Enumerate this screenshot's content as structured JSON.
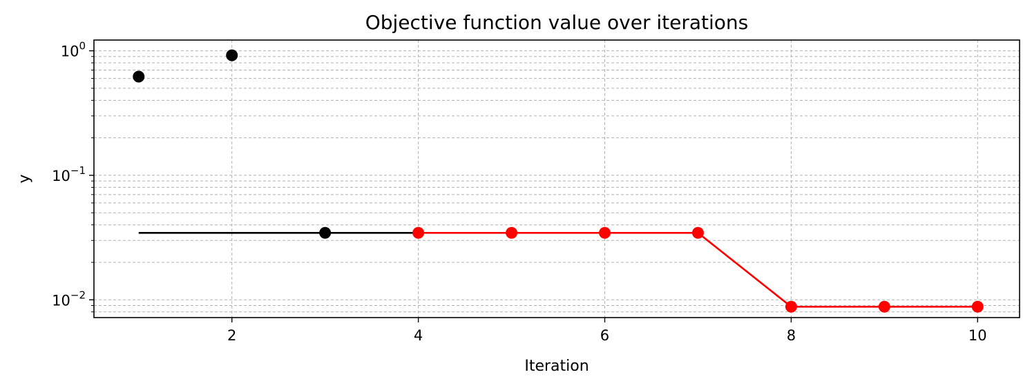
{
  "chart_data": {
    "type": "line",
    "title": "Objective function value over iterations",
    "xlabel": "Iteration",
    "ylabel": "y",
    "xlim": [
      0.52,
      10.45
    ],
    "ylim": [
      0.0072,
      1.22
    ],
    "yscale": "log",
    "grid": "both (major and minor), dashed, light gray",
    "x_ticks": [
      2,
      4,
      6,
      8,
      10
    ],
    "y_ticks": [
      {
        "value": 1,
        "base": "10",
        "exp": "0"
      },
      {
        "value": 0.1,
        "base": "10",
        "exp": "−1"
      },
      {
        "value": 0.01,
        "base": "10",
        "exp": "−2"
      }
    ],
    "colors": {
      "initial": "#000000",
      "optimization": "#ff0000",
      "grid": "#b0b0b0"
    },
    "series": [
      {
        "style": "scatter",
        "color": "#000000",
        "x": [
          1,
          2,
          3
        ],
        "y": [
          0.62,
          0.92,
          0.0345
        ]
      },
      {
        "style": "line",
        "color": "#000000",
        "x": [
          1,
          2,
          3,
          4
        ],
        "y": [
          0.0345,
          0.0345,
          0.0345,
          0.0345
        ]
      },
      {
        "style": "line-markers",
        "color": "#ff0000",
        "x": [
          4,
          5,
          6,
          7,
          8,
          9,
          10
        ],
        "y": [
          0.0345,
          0.0345,
          0.0345,
          0.0345,
          0.0088,
          0.0088,
          0.0088
        ]
      }
    ]
  }
}
